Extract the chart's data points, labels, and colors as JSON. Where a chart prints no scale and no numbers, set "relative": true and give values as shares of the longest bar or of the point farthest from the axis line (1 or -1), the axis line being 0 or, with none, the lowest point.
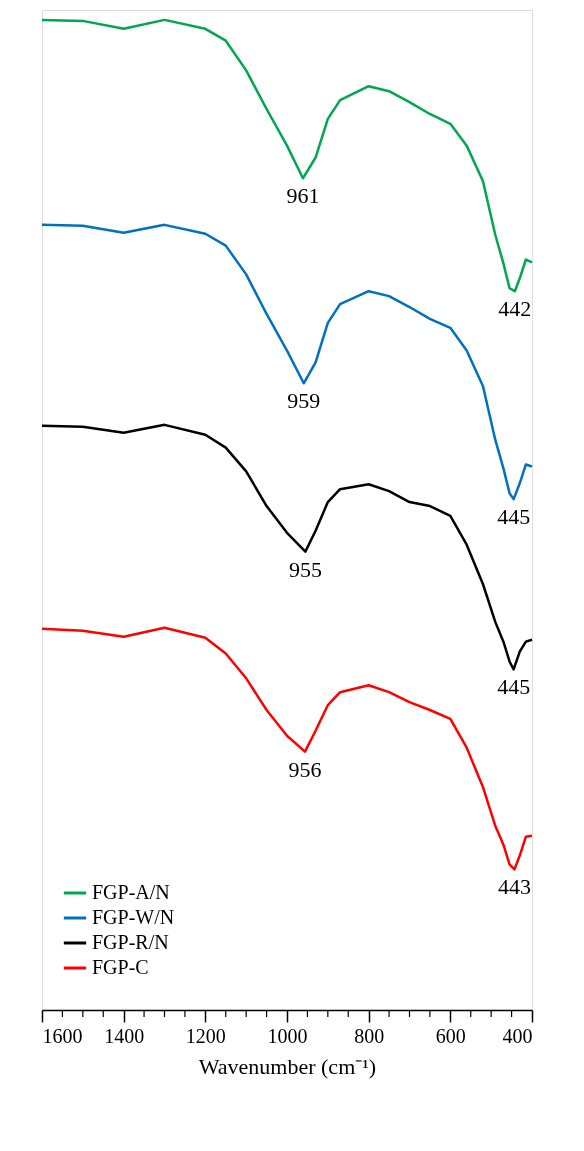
{
  "chart_data": {
    "type": "line",
    "relative": true,
    "xlabel": "Wavenumber (cm⁻¹)",
    "xlim": [
      1600,
      400
    ],
    "xticks": [
      1600,
      {
        "value": 1550,
        "label": null
      },
      {
        "value": 1500,
        "label": null
      },
      {
        "value": 1450,
        "label": null
      },
      1400,
      {
        "value": 1350,
        "label": null
      },
      {
        "value": 1300,
        "label": null
      },
      {
        "value": 1250,
        "label": null
      },
      1200,
      {
        "value": 1150,
        "label": null
      },
      {
        "value": 1100,
        "label": null
      },
      {
        "value": 1050,
        "label": null
      },
      1000,
      {
        "value": 950,
        "label": null
      },
      {
        "value": 900,
        "label": null
      },
      {
        "value": 850,
        "label": null
      },
      800,
      {
        "value": 750,
        "label": null
      },
      {
        "value": 700,
        "label": null
      },
      {
        "value": 650,
        "label": null
      },
      600,
      {
        "value": 550,
        "label": null
      },
      {
        "value": 500,
        "label": null
      },
      {
        "value": 450,
        "label": null
      },
      400
    ],
    "grid": false,
    "legend": "bottom left",
    "line_style": "solid",
    "marker": "none",
    "series": [
      {
        "name": "FGP-A/N",
        "color": "#00a651",
        "x": [
          1600,
          1500,
          1400,
          1300,
          1200,
          1150,
          1100,
          1050,
          1000,
          961,
          930,
          900,
          870,
          800,
          750,
          700,
          650,
          600,
          560,
          520,
          490,
          470,
          455,
          442,
          430,
          415,
          400
        ],
        "values": [
          1.0,
          0.999,
          0.991,
          1.0,
          0.991,
          0.979,
          0.949,
          0.91,
          0.873,
          0.84,
          0.861,
          0.9,
          0.919,
          0.933,
          0.928,
          0.917,
          0.905,
          0.895,
          0.873,
          0.837,
          0.783,
          0.754,
          0.729,
          0.726,
          0.739,
          0.758,
          0.755
        ]
      },
      {
        "name": "FGP-W/N",
        "color": "#0070c0",
        "x": [
          1600,
          1500,
          1400,
          1300,
          1200,
          1150,
          1100,
          1050,
          1000,
          959,
          930,
          900,
          870,
          800,
          750,
          700,
          650,
          600,
          560,
          520,
          490,
          470,
          455,
          445,
          430,
          415,
          400
        ],
        "values": [
          0.793,
          0.792,
          0.785,
          0.793,
          0.784,
          0.772,
          0.743,
          0.703,
          0.666,
          0.633,
          0.654,
          0.694,
          0.713,
          0.726,
          0.721,
          0.71,
          0.698,
          0.689,
          0.666,
          0.63,
          0.576,
          0.547,
          0.522,
          0.516,
          0.532,
          0.551,
          0.549
        ]
      },
      {
        "name": "FGP-R/N",
        "color": "#000000",
        "x": [
          1600,
          1500,
          1400,
          1300,
          1200,
          1150,
          1100,
          1050,
          1000,
          955,
          930,
          900,
          870,
          800,
          750,
          700,
          650,
          600,
          560,
          520,
          490,
          470,
          455,
          445,
          430,
          415,
          400
        ],
        "values": [
          0.59,
          0.589,
          0.583,
          0.591,
          0.581,
          0.568,
          0.544,
          0.509,
          0.482,
          0.463,
          0.484,
          0.513,
          0.526,
          0.531,
          0.524,
          0.513,
          0.509,
          0.499,
          0.47,
          0.43,
          0.392,
          0.372,
          0.352,
          0.344,
          0.362,
          0.372,
          0.374
        ]
      },
      {
        "name": "FGP-C",
        "color": "#ff0000",
        "x": [
          1600,
          1500,
          1400,
          1300,
          1200,
          1150,
          1100,
          1050,
          1000,
          956,
          930,
          900,
          870,
          800,
          750,
          700,
          650,
          600,
          560,
          520,
          490,
          470,
          455,
          443,
          430,
          415,
          400
        ],
        "values": [
          0.385,
          0.383,
          0.377,
          0.386,
          0.376,
          0.36,
          0.335,
          0.303,
          0.277,
          0.261,
          0.282,
          0.308,
          0.321,
          0.328,
          0.321,
          0.311,
          0.303,
          0.294,
          0.265,
          0.225,
          0.186,
          0.167,
          0.147,
          0.142,
          0.156,
          0.175,
          0.176
        ]
      }
    ],
    "annotations": [
      {
        "text": "961",
        "x": 961,
        "y": 0.84
      },
      {
        "text": "442",
        "x": 442,
        "y": 0.726
      },
      {
        "text": "959",
        "x": 959,
        "y": 0.633
      },
      {
        "text": "445",
        "x": 445,
        "y": 0.516
      },
      {
        "text": "955",
        "x": 955,
        "y": 0.463
      },
      {
        "text": "445",
        "x": 445,
        "y": 0.344
      },
      {
        "text": "956",
        "x": 956,
        "y": 0.261
      },
      {
        "text": "443",
        "x": 443,
        "y": 0.142
      }
    ]
  }
}
